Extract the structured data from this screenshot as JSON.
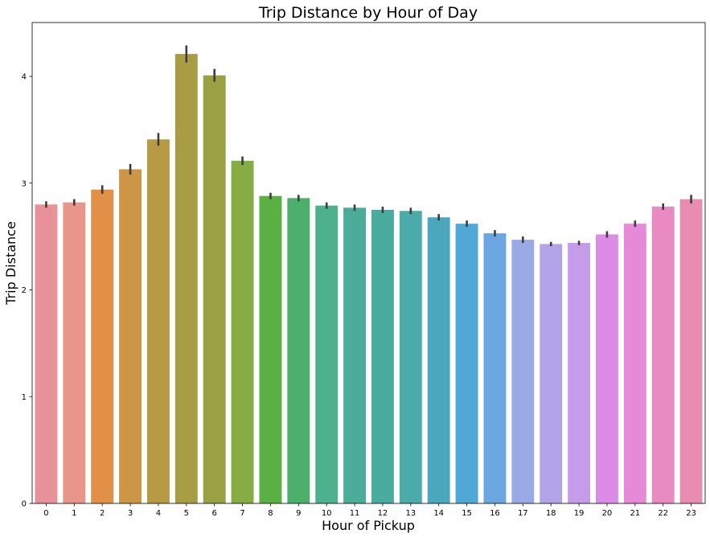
{
  "chart_data": {
    "type": "bar",
    "title": "Trip Distance by Hour of Day",
    "xlabel": "Hour of Pickup",
    "ylabel": "Trip Distance",
    "categories": [
      "0",
      "1",
      "2",
      "3",
      "4",
      "5",
      "6",
      "7",
      "8",
      "9",
      "10",
      "11",
      "12",
      "13",
      "14",
      "15",
      "16",
      "17",
      "18",
      "19",
      "20",
      "21",
      "22",
      "23"
    ],
    "values": [
      2.8,
      2.82,
      2.94,
      3.13,
      3.41,
      4.21,
      4.01,
      3.21,
      2.88,
      2.86,
      2.79,
      2.77,
      2.75,
      2.74,
      2.68,
      2.62,
      2.53,
      2.47,
      2.43,
      2.44,
      2.52,
      2.62,
      2.78,
      2.85
    ],
    "error": [
      0.03,
      0.03,
      0.04,
      0.05,
      0.06,
      0.08,
      0.06,
      0.04,
      0.03,
      0.03,
      0.03,
      0.03,
      0.03,
      0.03,
      0.03,
      0.03,
      0.03,
      0.03,
      0.02,
      0.02,
      0.03,
      0.03,
      0.03,
      0.04
    ],
    "colors": [
      "#e8919a",
      "#e8958a",
      "#e29048",
      "#cd9547",
      "#b89a44",
      "#a89d44",
      "#9aa144",
      "#86ac44",
      "#5ab043",
      "#4caf6b",
      "#4cb18c",
      "#4aac99",
      "#4aab9f",
      "#4babab",
      "#4ba8bc",
      "#4fa8d5",
      "#6ca6e2",
      "#9aaae6",
      "#b3a3e8",
      "#c59ce9",
      "#dc8be6",
      "#e68ad8",
      "#e98ac3",
      "#e98cb1"
    ],
    "yticks": [
      0,
      1,
      2,
      3,
      4
    ],
    "ylim": [
      0,
      4.5
    ],
    "grid": false,
    "legend": false
  }
}
